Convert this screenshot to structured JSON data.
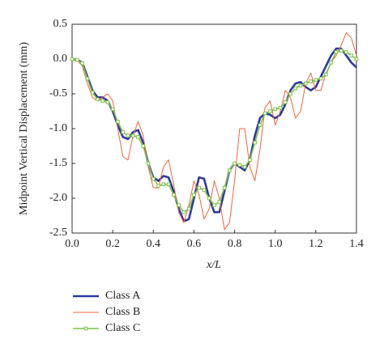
{
  "chart_data": {
    "type": "line",
    "ylabel": "Midpoint Vertical Displacement (mm)",
    "xlabel": "x/L",
    "xlim": [
      0,
      1.4
    ],
    "ylim": [
      -2.5,
      0.5
    ],
    "xticks": [
      {
        "value": 0,
        "label": "0.0"
      },
      0.2,
      0.4,
      0.6,
      0.8,
      {
        "value": 1,
        "label": "1.0"
      },
      1.2,
      1.4
    ],
    "yticks": [
      0.5,
      {
        "value": 0,
        "label": "0.0"
      },
      -0.5,
      {
        "value": -1,
        "label": "-1.0"
      },
      -1.5,
      {
        "value": -2,
        "label": "-2.0"
      },
      -2.5
    ],
    "x": [
      0,
      0.025,
      0.05,
      0.075,
      0.1,
      0.125,
      0.15,
      0.175,
      0.2,
      0.225,
      0.25,
      0.275,
      0.3,
      0.325,
      0.35,
      0.375,
      0.4,
      0.425,
      0.45,
      0.475,
      0.5,
      0.525,
      0.55,
      0.575,
      0.6,
      0.625,
      0.65,
      0.675,
      0.7,
      0.725,
      0.75,
      0.775,
      0.8,
      0.825,
      0.85,
      0.875,
      0.9,
      0.925,
      0.95,
      0.975,
      1.0,
      1.025,
      1.05,
      1.075,
      1.1,
      1.125,
      1.15,
      1.175,
      1.2,
      1.225,
      1.25,
      1.275,
      1.3,
      1.325,
      1.35,
      1.375,
      1.4
    ],
    "series": [
      {
        "name": "Class A",
        "color": "#2e3a9c",
        "width": 2.6,
        "marker": false,
        "values": [
          0,
          -0.01,
          -0.05,
          -0.25,
          -0.45,
          -0.55,
          -0.55,
          -0.6,
          -0.75,
          -0.95,
          -1.12,
          -1.15,
          -1.05,
          -1.02,
          -1.2,
          -1.5,
          -1.7,
          -1.75,
          -1.68,
          -1.7,
          -1.9,
          -2.15,
          -2.33,
          -2.3,
          -2.0,
          -1.7,
          -1.72,
          -2.0,
          -2.2,
          -2.2,
          -1.9,
          -1.6,
          -1.5,
          -1.55,
          -1.6,
          -1.45,
          -1.1,
          -0.85,
          -0.78,
          -0.8,
          -0.85,
          -0.8,
          -0.65,
          -0.45,
          -0.35,
          -0.33,
          -0.4,
          -0.45,
          -0.4,
          -0.25,
          -0.1,
          0.05,
          0.15,
          0.15,
          0.05,
          -0.05,
          -0.12
        ]
      },
      {
        "name": "Class B",
        "color": "#f0643c",
        "width": 1,
        "marker": false,
        "values": [
          0,
          -0.02,
          -0.1,
          -0.35,
          -0.55,
          -0.6,
          -0.55,
          -0.5,
          -0.6,
          -1.0,
          -1.4,
          -1.45,
          -1.1,
          -0.9,
          -1.1,
          -1.55,
          -1.85,
          -1.85,
          -1.55,
          -1.45,
          -1.8,
          -2.2,
          -2.35,
          -2.1,
          -1.75,
          -1.95,
          -2.3,
          -2.15,
          -1.75,
          -2.0,
          -2.45,
          -2.35,
          -1.75,
          -1.0,
          -1.0,
          -1.55,
          -1.75,
          -1.3,
          -0.7,
          -0.6,
          -0.95,
          -0.75,
          -0.45,
          -0.55,
          -0.85,
          -0.75,
          -0.35,
          -0.2,
          -0.45,
          -0.45,
          -0.2,
          -0.05,
          0.05,
          0.2,
          0.38,
          0.3,
          0.05
        ]
      },
      {
        "name": "Class C",
        "color": "#7cc24a",
        "width": 1.6,
        "marker": true,
        "values": [
          0,
          -0.01,
          -0.06,
          -0.28,
          -0.48,
          -0.58,
          -0.6,
          -0.62,
          -0.72,
          -0.9,
          -1.05,
          -1.1,
          -1.1,
          -1.12,
          -1.25,
          -1.5,
          -1.72,
          -1.82,
          -1.8,
          -1.8,
          -1.95,
          -2.1,
          -2.2,
          -2.15,
          -1.95,
          -1.85,
          -1.88,
          -2.0,
          -2.1,
          -2.05,
          -1.85,
          -1.6,
          -1.5,
          -1.52,
          -1.55,
          -1.45,
          -1.2,
          -0.95,
          -0.78,
          -0.75,
          -0.72,
          -0.7,
          -0.62,
          -0.5,
          -0.42,
          -0.38,
          -0.35,
          -0.32,
          -0.3,
          -0.28,
          -0.22,
          -0.05,
          0.1,
          0.12,
          0.1,
          0.05,
          0
        ]
      }
    ]
  }
}
